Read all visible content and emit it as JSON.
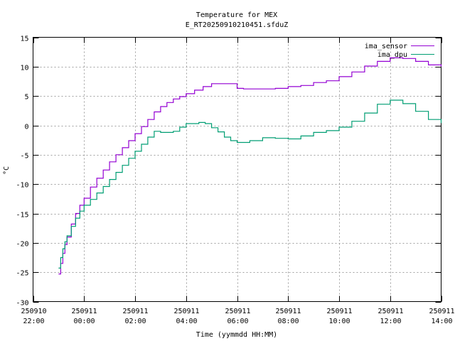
{
  "chart_data": {
    "type": "line",
    "title": "Temperature for MEX",
    "subtitle": "E_RT20250910210451.sfduZ",
    "xlabel": "Time (yymmdd HH:MM)",
    "ylabel": "°C",
    "xlim": [
      "2025-09-10 22:00",
      "2025-09-11 14:00"
    ],
    "ylim": [
      -30,
      15
    ],
    "grid": true,
    "legend": "top-right",
    "x_ticks": [
      {
        "date": "250910",
        "time": "22:00"
      },
      {
        "date": "250911",
        "time": "00:00"
      },
      {
        "date": "250911",
        "time": "02:00"
      },
      {
        "date": "250911",
        "time": "04:00"
      },
      {
        "date": "250911",
        "time": "06:00"
      },
      {
        "date": "250911",
        "time": "08:00"
      },
      {
        "date": "250911",
        "time": "10:00"
      },
      {
        "date": "250911",
        "time": "12:00"
      },
      {
        "date": "250911",
        "time": "14:00"
      }
    ],
    "y_ticks": [
      "-30",
      "-25",
      "-20",
      "-15",
      "-10",
      "-5",
      "0",
      "5",
      "10",
      "15"
    ],
    "series": [
      {
        "name": "ima_sensor",
        "color": "#9400d3",
        "x": [
          "2025-09-10 23:00",
          "2025-09-10 23:05",
          "2025-09-10 23:10",
          "2025-09-10 23:15",
          "2025-09-10 23:20",
          "2025-09-10 23:30",
          "2025-09-10 23:40",
          "2025-09-10 23:50",
          "2025-09-11 00:00",
          "2025-09-11 00:15",
          "2025-09-11 00:30",
          "2025-09-11 00:45",
          "2025-09-11 01:00",
          "2025-09-11 01:15",
          "2025-09-11 01:30",
          "2025-09-11 01:45",
          "2025-09-11 02:00",
          "2025-09-11 02:15",
          "2025-09-11 02:30",
          "2025-09-11 02:45",
          "2025-09-11 03:00",
          "2025-09-11 03:15",
          "2025-09-11 03:30",
          "2025-09-11 03:45",
          "2025-09-11 04:00",
          "2025-09-11 04:20",
          "2025-09-11 04:40",
          "2025-09-11 05:00",
          "2025-09-11 05:30",
          "2025-09-11 06:00",
          "2025-09-11 06:15",
          "2025-09-11 06:30",
          "2025-09-11 07:00",
          "2025-09-11 07:30",
          "2025-09-11 08:00",
          "2025-09-11 08:30",
          "2025-09-11 09:00",
          "2025-09-11 09:30",
          "2025-09-11 10:00",
          "2025-09-11 10:30",
          "2025-09-11 11:00",
          "2025-09-11 11:30",
          "2025-09-11 12:00",
          "2025-09-11 12:30",
          "2025-09-11 13:00",
          "2025-09-11 13:30",
          "2025-09-11 14:00"
        ],
        "y": [
          -25.3,
          -23.5,
          -21.8,
          -20.3,
          -19.0,
          -16.8,
          -15.0,
          -13.6,
          -12.4,
          -10.5,
          -9.0,
          -7.6,
          -6.2,
          -5.0,
          -3.8,
          -2.6,
          -1.4,
          -0.2,
          1.0,
          2.3,
          3.2,
          3.9,
          4.5,
          4.9,
          5.4,
          6.0,
          6.6,
          7.1,
          7.1,
          6.3,
          6.2,
          6.2,
          6.2,
          6.3,
          6.6,
          6.8,
          7.3,
          7.6,
          8.3,
          9.1,
          10.1,
          10.9,
          11.5,
          11.4,
          10.9,
          10.3,
          10.0
        ]
      },
      {
        "name": "ima_dpu",
        "color": "#009e73",
        "x": [
          "2025-09-10 23:00",
          "2025-09-10 23:05",
          "2025-09-10 23:10",
          "2025-09-10 23:15",
          "2025-09-10 23:20",
          "2025-09-10 23:30",
          "2025-09-10 23:40",
          "2025-09-10 23:50",
          "2025-09-11 00:00",
          "2025-09-11 00:15",
          "2025-09-11 00:30",
          "2025-09-11 00:45",
          "2025-09-11 01:00",
          "2025-09-11 01:15",
          "2025-09-11 01:30",
          "2025-09-11 01:45",
          "2025-09-11 02:00",
          "2025-09-11 02:15",
          "2025-09-11 02:30",
          "2025-09-11 02:45",
          "2025-09-11 03:00",
          "2025-09-11 03:15",
          "2025-09-11 03:30",
          "2025-09-11 03:45",
          "2025-09-11 04:00",
          "2025-09-11 04:30",
          "2025-09-11 04:45",
          "2025-09-11 05:00",
          "2025-09-11 05:15",
          "2025-09-11 05:30",
          "2025-09-11 05:45",
          "2025-09-11 06:00",
          "2025-09-11 06:15",
          "2025-09-11 06:30",
          "2025-09-11 07:00",
          "2025-09-11 07:30",
          "2025-09-11 08:00",
          "2025-09-11 08:30",
          "2025-09-11 09:00",
          "2025-09-11 09:30",
          "2025-09-11 10:00",
          "2025-09-11 10:30",
          "2025-09-11 11:00",
          "2025-09-11 11:30",
          "2025-09-11 12:00",
          "2025-09-11 12:30",
          "2025-09-11 13:00",
          "2025-09-11 13:30",
          "2025-09-11 14:00"
        ],
        "y": [
          -24.3,
          -22.5,
          -21.0,
          -19.8,
          -18.8,
          -17.2,
          -15.8,
          -14.6,
          -13.6,
          -12.6,
          -11.5,
          -10.4,
          -9.2,
          -8.0,
          -6.8,
          -5.6,
          -4.4,
          -3.2,
          -2.0,
          -1.0,
          -1.2,
          -1.2,
          -1.0,
          -0.3,
          0.3,
          0.5,
          0.3,
          -0.4,
          -1.1,
          -2.0,
          -2.6,
          -2.9,
          -2.9,
          -2.6,
          -2.1,
          -2.2,
          -2.3,
          -1.8,
          -1.2,
          -0.9,
          -0.3,
          0.7,
          2.1,
          3.6,
          4.3,
          3.7,
          2.4,
          1.0,
          0.4
        ]
      }
    ]
  }
}
